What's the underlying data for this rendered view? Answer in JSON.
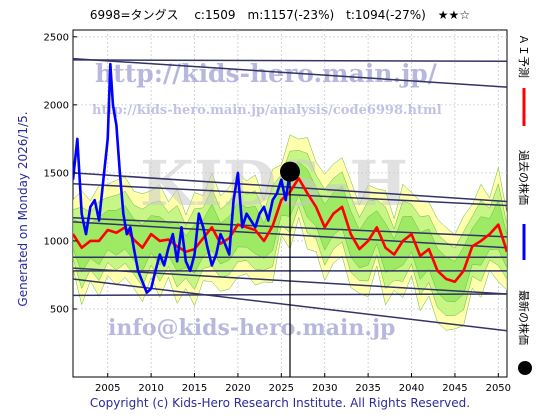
{
  "header": {
    "title": "6998=タングス　 c:1509　m:1157(-23%)　t:1094(-27%)　★★☆"
  },
  "side_label": "Generated on Monday 2026/1/5.",
  "footer": "Copyright (c) Kids-Hero Research Institute. All Rights Reserved.",
  "watermarks": {
    "url_main": "http://kids-hero.main.jp/",
    "url_analysis": "http://kids-hero.main.jp/analysis/code6998.html",
    "email": "info@kids-hero.main.jp",
    "big": "KIDS-H"
  },
  "legend": {
    "forecast": "ＡＩ予測",
    "past": "過去の株価",
    "latest": "最新の株価"
  },
  "colors": {
    "forecast": "#ff0000",
    "past": "#0000ff",
    "latest": "#000000",
    "band_outer": "#ffff99",
    "band_inner": "#99ee66",
    "trend": "#333366"
  },
  "chart_data": {
    "type": "line",
    "title": "6998=タングス　 c:1509　m:1157(-23%)　t:1094(-27%)　★★☆",
    "xlim": [
      2001,
      2051
    ],
    "ylim": [
      0,
      2550
    ],
    "xticks": [
      2005,
      2010,
      2015,
      2020,
      2025,
      2030,
      2035,
      2040,
      2045,
      2050
    ],
    "yticks": [
      500,
      1000,
      1500,
      2000,
      2500
    ],
    "grid": true,
    "current": {
      "x": 2026.0,
      "y": 1509
    },
    "series": [
      {
        "name": "過去の株価",
        "x": [
          2001.0,
          2001.5,
          2002.0,
          2002.5,
          2003.0,
          2003.5,
          2004.0,
          2004.5,
          2005.0,
          2005.3,
          2005.6,
          2006.0,
          2006.4,
          2006.8,
          2007.2,
          2007.6,
          2008.0,
          2008.5,
          2009.0,
          2009.5,
          2010.0,
          2010.5,
          2011.0,
          2011.5,
          2012.0,
          2012.5,
          2013.0,
          2013.5,
          2014.0,
          2014.5,
          2015.0,
          2015.5,
          2016.0,
          2016.5,
          2017.0,
          2017.5,
          2018.0,
          2018.5,
          2019.0,
          2019.5,
          2020.0,
          2020.5,
          2021.0,
          2021.5,
          2022.0,
          2022.5,
          2023.0,
          2023.5,
          2024.0,
          2024.5,
          2025.0,
          2025.5,
          2026.0
        ],
        "values": [
          1450,
          1750,
          1200,
          1050,
          1250,
          1300,
          1150,
          1450,
          1750,
          2300,
          2000,
          1850,
          1500,
          1200,
          1050,
          1100,
          950,
          780,
          700,
          620,
          650,
          780,
          900,
          820,
          950,
          1050,
          850,
          1100,
          850,
          780,
          900,
          1200,
          1100,
          950,
          820,
          900,
          1050,
          980,
          900,
          1300,
          1500,
          1100,
          1200,
          1150,
          1100,
          1200,
          1250,
          1150,
          1300,
          1350,
          1450,
          1300,
          1509
        ]
      },
      {
        "name": "ＡＩ予測",
        "x": [
          2001.0,
          2002.0,
          2003.0,
          2004.0,
          2005.0,
          2006.0,
          2007.0,
          2008.0,
          2009.0,
          2010.0,
          2011.0,
          2012.0,
          2013.0,
          2014.0,
          2015.0,
          2016.0,
          2017.0,
          2018.0,
          2019.0,
          2020.0,
          2021.0,
          2022.0,
          2023.0,
          2024.0,
          2025.0,
          2026.0,
          2027.0,
          2028.0,
          2029.0,
          2030.0,
          2031.0,
          2032.0,
          2033.0,
          2034.0,
          2035.0,
          2036.0,
          2037.0,
          2038.0,
          2039.0,
          2040.0,
          2041.0,
          2042.0,
          2043.0,
          2044.0,
          2045.0,
          2046.0,
          2047.0,
          2048.0,
          2049.0,
          2050.0,
          2051.0
        ],
        "values": [
          1050,
          950,
          1000,
          1000,
          1080,
          1060,
          1100,
          1010,
          950,
          1050,
          1000,
          1010,
          960,
          920,
          940,
          1020,
          1100,
          980,
          1020,
          1120,
          1100,
          1080,
          1000,
          1110,
          1300,
          1360,
          1460,
          1350,
          1250,
          1100,
          1200,
          1250,
          1050,
          940,
          1000,
          1100,
          950,
          900,
          1000,
          1050,
          890,
          940,
          780,
          720,
          700,
          780,
          960,
          1000,
          1050,
          1120,
          920
        ]
      }
    ],
    "trend_lines": [
      [
        [
          2001,
          2330
        ],
        [
          2051,
          2320
        ]
      ],
      [
        [
          2001,
          2340
        ],
        [
          2051,
          2130
        ]
      ],
      [
        [
          2001,
          1500
        ],
        [
          2051,
          1290
        ]
      ],
      [
        [
          2001,
          1420
        ],
        [
          2051,
          1260
        ]
      ],
      [
        [
          2001,
          1140
        ],
        [
          2051,
          950
        ]
      ],
      [
        [
          2001,
          1170
        ],
        [
          2051,
          1030
        ]
      ],
      [
        [
          2001,
          880
        ],
        [
          2051,
          880
        ]
      ],
      [
        [
          2001,
          780
        ],
        [
          2051,
          780
        ]
      ],
      [
        [
          2001,
          800
        ],
        [
          2051,
          610
        ]
      ],
      [
        [
          2001,
          600
        ],
        [
          2051,
          610
        ]
      ],
      [
        [
          2001,
          720
        ],
        [
          2051,
          340
        ]
      ]
    ]
  }
}
